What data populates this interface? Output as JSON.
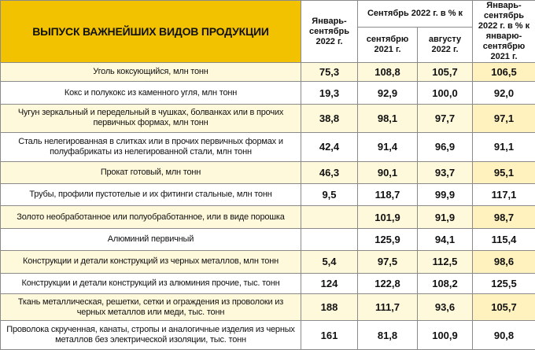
{
  "header": {
    "title": "ВЫПУСК ВАЖНЕЙШИХ ВИДОВ ПРОДУКЦИИ",
    "col_jan_sep": "Январь-сентябрь 2022 г.",
    "col_sep_group": "Сентябрь 2022 г. в % к",
    "col_sep_2021": "сентябрю 2021 г.",
    "col_aug_2022": "августу 2022 г.",
    "col_jan_sep_pct": "Январь-сентябрь 2022 г. в % к январю-сентябрю 2021 г."
  },
  "rows": [
    {
      "name": "Уголь коксующийся, млн тонн",
      "jan_sep": "75,3",
      "vs_sep": "108,8",
      "vs_aug": "105,7",
      "ytd": "106,5"
    },
    {
      "name": "Кокс и полукокс из каменного угля, млн тонн",
      "jan_sep": "19,3",
      "vs_sep": "92,9",
      "vs_aug": "100,0",
      "ytd": "92,0"
    },
    {
      "name": "Чугун зеркальный и передельный в чушках, болванках или в прочих первичных формах, млн тонн",
      "jan_sep": "38,8",
      "vs_sep": "98,1",
      "vs_aug": "97,7",
      "ytd": "97,1"
    },
    {
      "name": "Сталь нелегированная в слитках или в прочих первичных формах и полуфабрикаты из нелегированной стали, млн тонн",
      "jan_sep": "42,4",
      "vs_sep": "91,4",
      "vs_aug": "96,9",
      "ytd": "91,1"
    },
    {
      "name": "Прокат готовый, млн тонн",
      "jan_sep": "46,3",
      "vs_sep": "90,1",
      "vs_aug": "93,7",
      "ytd": "95,1"
    },
    {
      "name": "Трубы, профили пустотелые и их фитинги стальные, млн тонн",
      "jan_sep": "9,5",
      "vs_sep": "118,7",
      "vs_aug": "99,9",
      "ytd": "117,1"
    },
    {
      "name": "Золото необработанное или полуобработанное, или в виде порошка",
      "jan_sep": "",
      "vs_sep": "101,9",
      "vs_aug": "91,9",
      "ytd": "98,7"
    },
    {
      "name": "Алюминий первичный",
      "jan_sep": "",
      "vs_sep": "125,9",
      "vs_aug": "94,1",
      "ytd": "115,4"
    },
    {
      "name": "Конструкции и детали конструкций из черных металлов, млн тонн",
      "jan_sep": "5,4",
      "vs_sep": "97,5",
      "vs_aug": "112,5",
      "ytd": "98,6"
    },
    {
      "name": "Конструкции и детали конструкций из алюминия прочие, тыс. тонн",
      "jan_sep": "124",
      "vs_sep": "122,8",
      "vs_aug": "108,2",
      "ytd": "125,5"
    },
    {
      "name": "Ткань металлическая, решетки, сетки и ограждения из проволоки из черных металлов или меди, тыс. тонн",
      "jan_sep": "188",
      "vs_sep": "111,7",
      "vs_aug": "93,6",
      "ytd": "105,7"
    },
    {
      "name": "Проволока скрученная, канаты, стропы и аналогичные изделия из черных металлов без электрической изоляции, тыс. тонн",
      "jan_sep": "161",
      "vs_sep": "81,8",
      "vs_aug": "100,9",
      "ytd": "90,8"
    }
  ]
}
